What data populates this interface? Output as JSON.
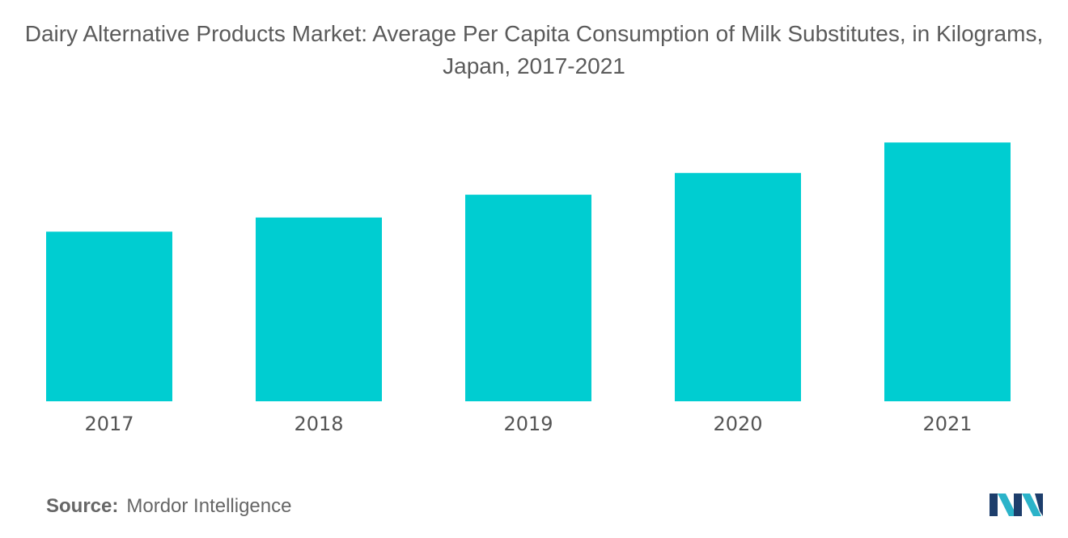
{
  "title": "Dairy Alternative Products Market: Average Per Capita Consumption of Milk Substitutes, in Kilograms, Japan, 2017-2021",
  "source": {
    "label": "Source:",
    "value": "Mordor Intelligence"
  },
  "logo": {
    "icon": "mordor-intelligence-logo",
    "colors": [
      "#1d3e6c",
      "#2bb3c9"
    ]
  },
  "colors": {
    "bar": "#00cdd1",
    "text": "#555555"
  },
  "chart_data": {
    "type": "bar",
    "title": "Dairy Alternative Products Market: Average Per Capita Consumption of Milk Substitutes, in Kilograms, Japan, 2017-2021",
    "categories": [
      "2017",
      "2018",
      "2019",
      "2020",
      "2021"
    ],
    "values": [
      1.56,
      1.69,
      1.9,
      2.1,
      2.38
    ],
    "xlabel": "",
    "ylabel": "",
    "ylim": [
      0,
      2.5
    ],
    "grid": false,
    "legend": "none",
    "y_axis_visible": false
  }
}
